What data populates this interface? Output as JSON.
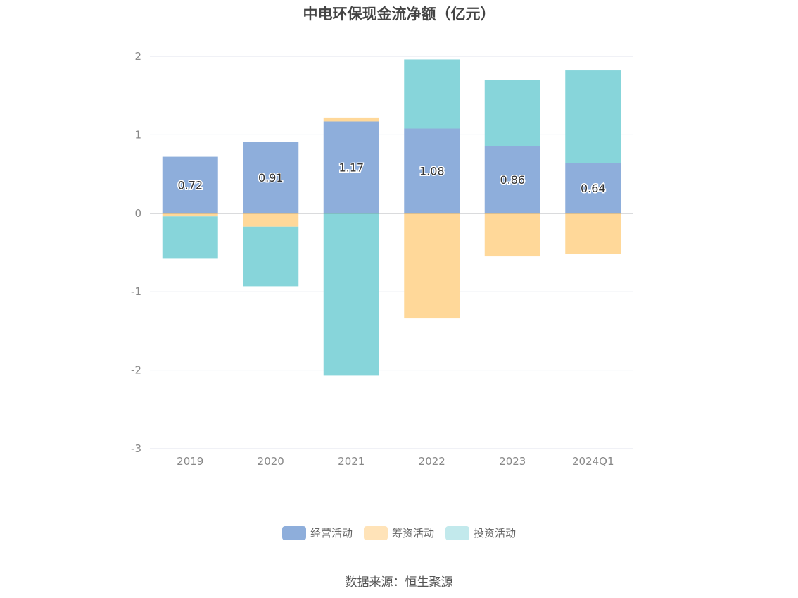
{
  "chart_data": {
    "type": "bar",
    "title": "中电环保现金流净额（亿元）",
    "categories": [
      "2019",
      "2020",
      "2021",
      "2022",
      "2023",
      "2024Q1"
    ],
    "series": [
      {
        "name": "经营活动",
        "values": [
          0.72,
          0.91,
          1.17,
          1.08,
          0.86,
          0.64
        ],
        "color": "#8eaedb",
        "labels": [
          "0.72",
          "0.91",
          "1.17",
          "1.08",
          "0.86",
          "0.64"
        ]
      },
      {
        "name": "筹资活动",
        "values": [
          -0.04,
          -0.17,
          0.05,
          -1.34,
          -0.55,
          -0.52
        ],
        "color": "#ffd899"
      },
      {
        "name": "投资活动",
        "values": [
          -0.54,
          -0.76,
          -2.07,
          0.88,
          0.84,
          1.18
        ],
        "color": "#87d5da"
      }
    ],
    "yticks": [
      2,
      1,
      0,
      -1,
      -2,
      -3
    ],
    "ylim": [
      -3,
      2
    ],
    "stacked": true,
    "grid": true,
    "legend_position": "bottom"
  },
  "legend": {
    "items": [
      {
        "label": "经营活动",
        "color": "#8eaedb"
      },
      {
        "label": "筹资活动",
        "color": "#ffe3b8"
      },
      {
        "label": "投资活动",
        "color": "#c2e9ec"
      }
    ]
  },
  "source": "数据来源：恒生聚源"
}
